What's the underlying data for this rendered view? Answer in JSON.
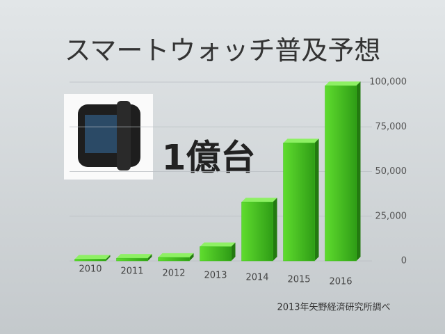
{
  "chart_data": {
    "type": "bar",
    "title": "スマートウォッチ普及予想",
    "annotation": "1億台",
    "source": "2013年矢野経済研究所調べ",
    "categories": [
      "2010",
      "2011",
      "2012",
      "2013",
      "2014",
      "2015",
      "2016"
    ],
    "values": [
      1000,
      1500,
      2000,
      8000,
      33000,
      66000,
      98000
    ],
    "color": "#3fc21f",
    "ylim": [
      0,
      100000
    ],
    "yticks": [
      0,
      {
        "value": 25000,
        "label": "25,000"
      },
      {
        "value": 50000,
        "label": "50,000"
      },
      {
        "value": 75000,
        "label": "75,000"
      },
      {
        "value": 100000,
        "label": "100,000"
      }
    ],
    "grid": true
  }
}
